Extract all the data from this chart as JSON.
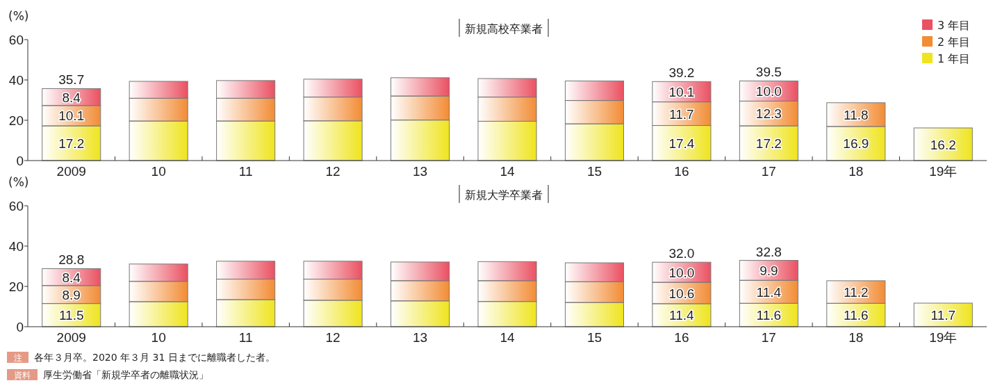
{
  "chart_data": [
    {
      "type": "bar",
      "title": "新規高校卒業者",
      "ylabel": "(%)",
      "stacked": true,
      "legend": "top right",
      "categories": [
        "2009",
        "10",
        "11",
        "12",
        "13",
        "14",
        "15",
        "16",
        "17",
        "18",
        "19年"
      ],
      "ylim": [
        0,
        60
      ],
      "yticks": [
        0,
        20,
        40,
        60
      ],
      "series": [
        {
          "name": "1 年目",
          "color": "#efe41e",
          "values": [
            17.2,
            19.6,
            19.6,
            19.7,
            20.1,
            19.5,
            18.2,
            17.4,
            17.2,
            16.9,
            16.2
          ],
          "value_labels": [
            "17.2",
            null,
            null,
            null,
            null,
            null,
            null,
            "17.4",
            "17.2",
            "16.9",
            "16.2"
          ]
        },
        {
          "name": "2 年目",
          "color": "#f28c35",
          "values": [
            10.1,
            11.3,
            11.3,
            11.8,
            11.9,
            12.0,
            11.6,
            11.7,
            12.3,
            11.8,
            null
          ],
          "value_labels": [
            "10.1",
            null,
            null,
            null,
            null,
            null,
            null,
            "11.7",
            "12.3",
            "11.8",
            null
          ]
        },
        {
          "name": "3 年目",
          "color": "#ea5162",
          "values": [
            8.4,
            8.4,
            8.8,
            8.9,
            9.1,
            9.2,
            9.7,
            10.1,
            10.0,
            null,
            null
          ],
          "value_labels": [
            "8.4",
            null,
            null,
            null,
            null,
            null,
            null,
            "10.1",
            "10.0",
            null,
            null
          ]
        }
      ],
      "totals": [
        "35.7",
        null,
        null,
        null,
        null,
        null,
        null,
        "39.2",
        "39.5",
        null,
        null
      ]
    },
    {
      "type": "bar",
      "title": "新規大学卒業者",
      "ylabel": "(%)",
      "stacked": true,
      "categories": [
        "2009",
        "10",
        "11",
        "12",
        "13",
        "14",
        "15",
        "16",
        "17",
        "18",
        "19年"
      ],
      "ylim": [
        0,
        60
      ],
      "yticks": [
        0,
        20,
        40,
        60
      ],
      "series": [
        {
          "color": "#efe41e",
          "values": [
            11.5,
            12.4,
            13.4,
            13.1,
            12.8,
            12.5,
            12.0,
            11.4,
            11.6,
            11.6,
            11.7
          ],
          "value_labels": [
            "11.5",
            null,
            null,
            null,
            null,
            null,
            null,
            "11.4",
            "11.6",
            "11.6",
            "11.7"
          ]
        },
        {
          "color": "#f28c35",
          "values": [
            8.9,
            10.1,
            10.2,
            10.5,
            10.0,
            10.3,
            10.3,
            10.6,
            11.4,
            11.2,
            null
          ],
          "value_labels": [
            "8.9",
            null,
            null,
            null,
            null,
            null,
            null,
            "10.6",
            "11.4",
            "11.2",
            null
          ]
        },
        {
          "color": "#ea5162",
          "values": [
            8.4,
            8.6,
            8.9,
            8.9,
            9.3,
            9.5,
            9.4,
            10.0,
            9.9,
            null,
            null
          ],
          "value_labels": [
            "8.4",
            null,
            null,
            null,
            null,
            null,
            null,
            "10.0",
            "9.9",
            null,
            null
          ]
        }
      ],
      "totals": [
        "28.8",
        null,
        null,
        null,
        null,
        null,
        null,
        "32.0",
        "32.8",
        null,
        null
      ],
      "annotations": [
        "注 各年３月卒。2020 年３月 31 日までに離職者した者。",
        "資料 厚生労働省「新規学卒者の離職状況」"
      ]
    }
  ]
}
